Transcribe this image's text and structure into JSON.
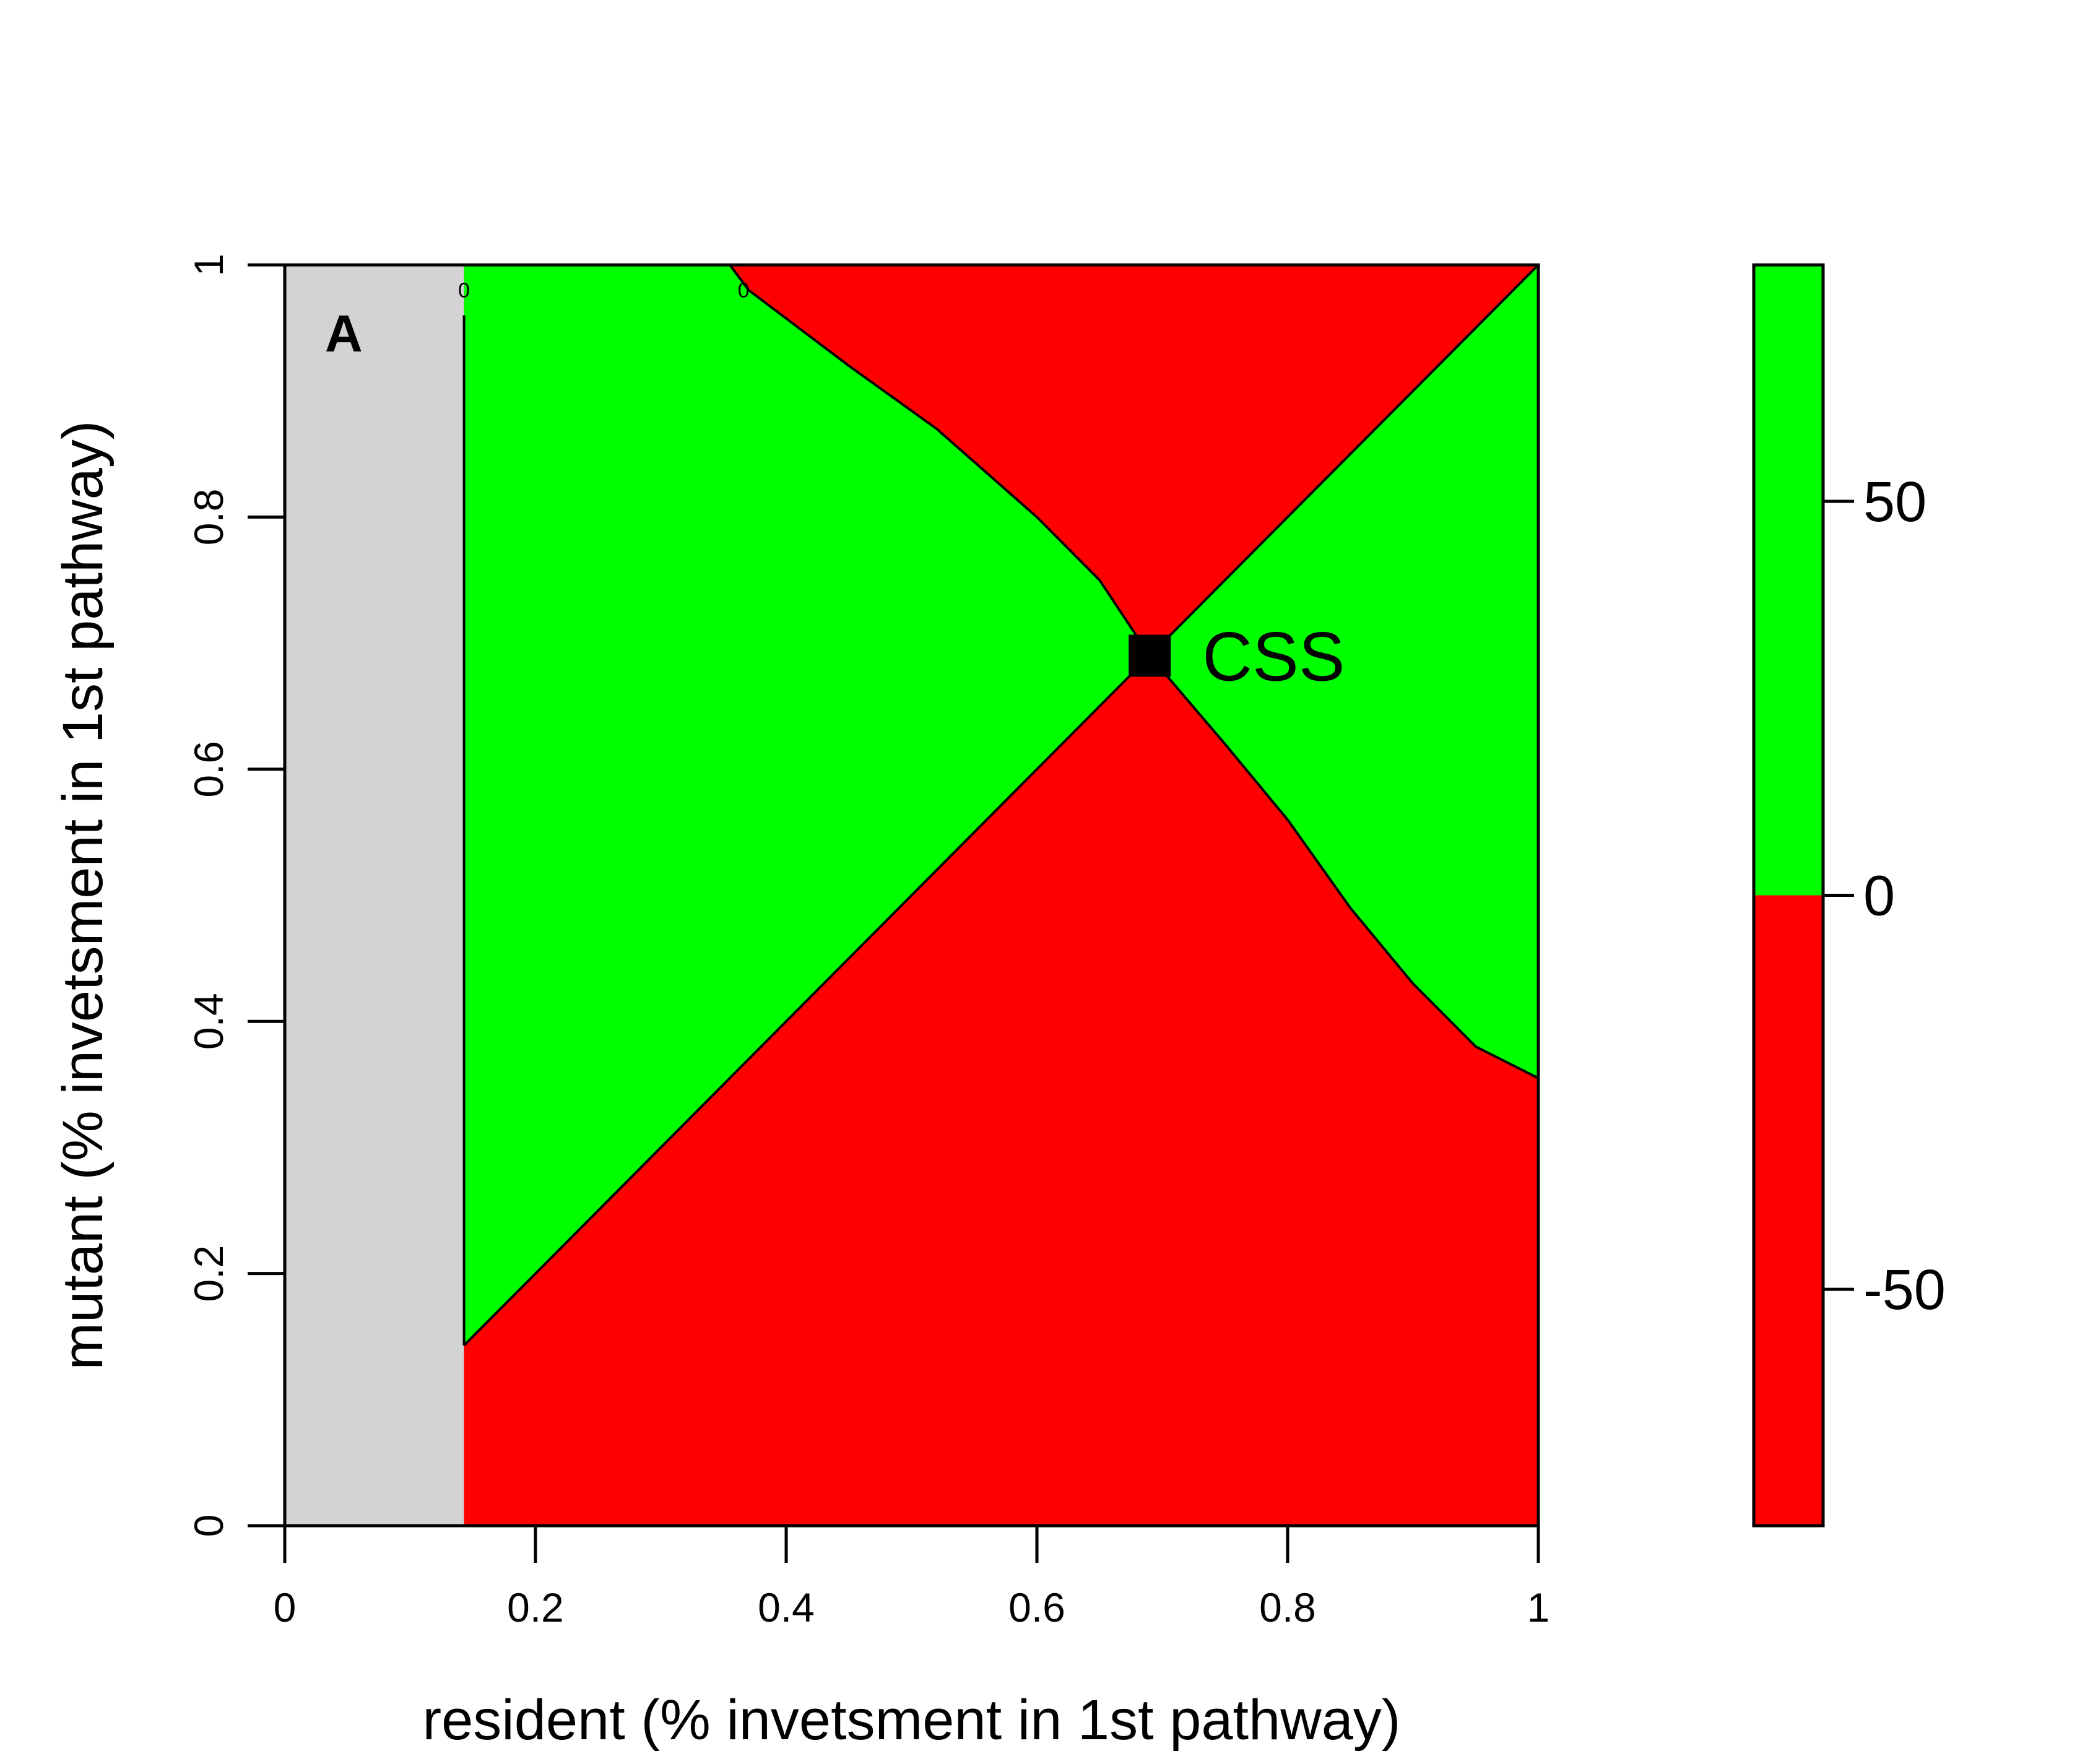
{
  "chart_data": {
    "type": "heatmap",
    "title": "",
    "panel_label": "A",
    "xlabel": "resident (% invetsment in 1st pathway)",
    "ylabel": "mutant (% invetsment in 1st pathway)",
    "xlim": [
      0,
      1
    ],
    "ylim": [
      0,
      1
    ],
    "x_ticks": [
      0,
      0.2,
      0.4,
      0.6,
      0.8,
      1
    ],
    "x_tick_labels": [
      "0",
      "0.2",
      "0.4",
      "0.6",
      "0.8",
      "1"
    ],
    "y_ticks": [
      0,
      0.2,
      0.4,
      0.6,
      0.8,
      1
    ],
    "y_tick_labels": [
      "0",
      "0.2",
      "0.4",
      "0.6",
      "0.8",
      "1"
    ],
    "colors": {
      "positive": "#00ff00",
      "negative": "#ff0000",
      "excluded": "#d3d3d3"
    },
    "excluded_region_x": [
      0,
      0.143
    ],
    "css_point": {
      "label": "CSS",
      "x": 0.69,
      "y": 0.69
    },
    "diagonal": [
      [
        0.143,
        0.143
      ],
      [
        1,
        1
      ]
    ],
    "boundary_curve_upper": [
      [
        0.355,
        1
      ],
      [
        0.37,
        0.98
      ],
      [
        0.45,
        0.92
      ],
      [
        0.52,
        0.87
      ],
      [
        0.6,
        0.8
      ],
      [
        0.65,
        0.75
      ],
      [
        0.69,
        0.69
      ]
    ],
    "boundary_curve_lower": [
      [
        0.69,
        0.69
      ],
      [
        0.75,
        0.62
      ],
      [
        0.8,
        0.56
      ],
      [
        0.85,
        0.49
      ],
      [
        0.9,
        0.43
      ],
      [
        0.95,
        0.38
      ],
      [
        1,
        0.355
      ]
    ],
    "small_markers": [
      {
        "label": "0",
        "x": 0.143,
        "y": 0.98
      },
      {
        "label": "0",
        "x": 0.366,
        "y": 0.98
      }
    ],
    "colorbar": {
      "range": [
        -80,
        80
      ],
      "ticks": [
        50,
        0,
        -50
      ],
      "tick_labels": [
        "50",
        "0",
        "-50"
      ],
      "split_value": 0
    }
  }
}
